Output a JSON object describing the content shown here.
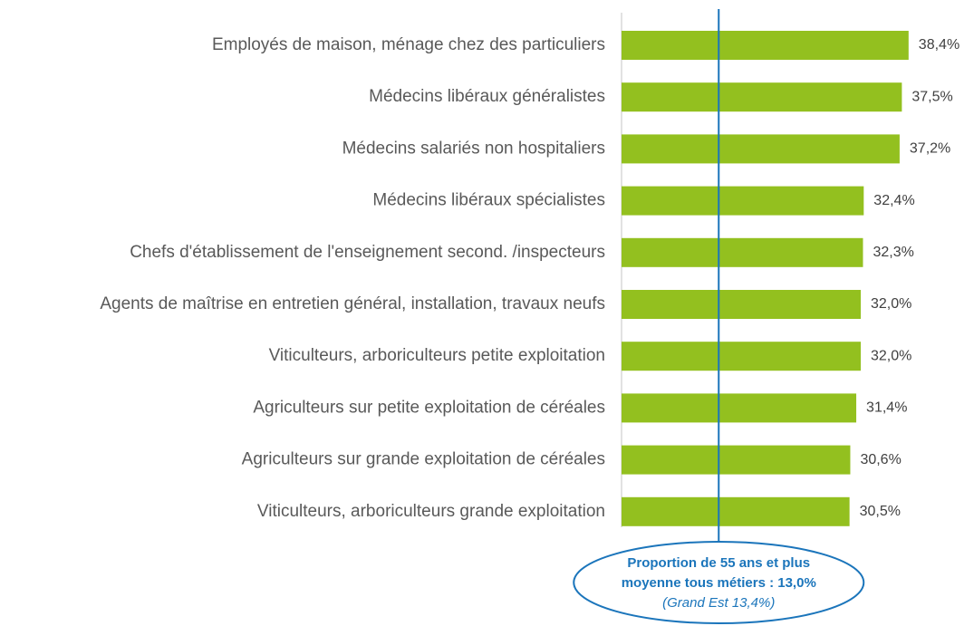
{
  "chart_data": {
    "type": "bar",
    "orientation": "horizontal",
    "categories": [
      "Employés de maison, ménage chez des particuliers",
      "Médecins libéraux généralistes",
      "Médecins salariés non hospitaliers",
      "Médecins libéraux spécialistes",
      "Chefs d'établissement de l'enseignement second. /inspecteurs",
      "Agents de maîtrise en entretien général, installation, travaux neufs",
      "Viticulteurs, arboriculteurs petite exploitation",
      "Agriculteurs sur petite exploitation de céréales",
      "Agriculteurs sur grande exploitation de céréales",
      "Viticulteurs, arboriculteurs grande exploitation"
    ],
    "values": [
      38.4,
      37.5,
      37.2,
      32.4,
      32.3,
      32.0,
      32.0,
      31.4,
      30.6,
      30.5
    ],
    "value_labels": [
      "38,4%",
      "37,5%",
      "37,2%",
      "32,4%",
      "32,3%",
      "32,0%",
      "32,0%",
      "31,4%",
      "30,6%",
      "30,5%"
    ],
    "color": "#93c01f",
    "xlim": [
      0,
      40
    ],
    "reference_line": {
      "value": 13.0,
      "color": "#1b75bb"
    },
    "annotation": [
      "Proportion de 55 ans et plus",
      "moyenne tous métiers : 13,0%",
      "(Grand Est 13,4%)"
    ]
  }
}
